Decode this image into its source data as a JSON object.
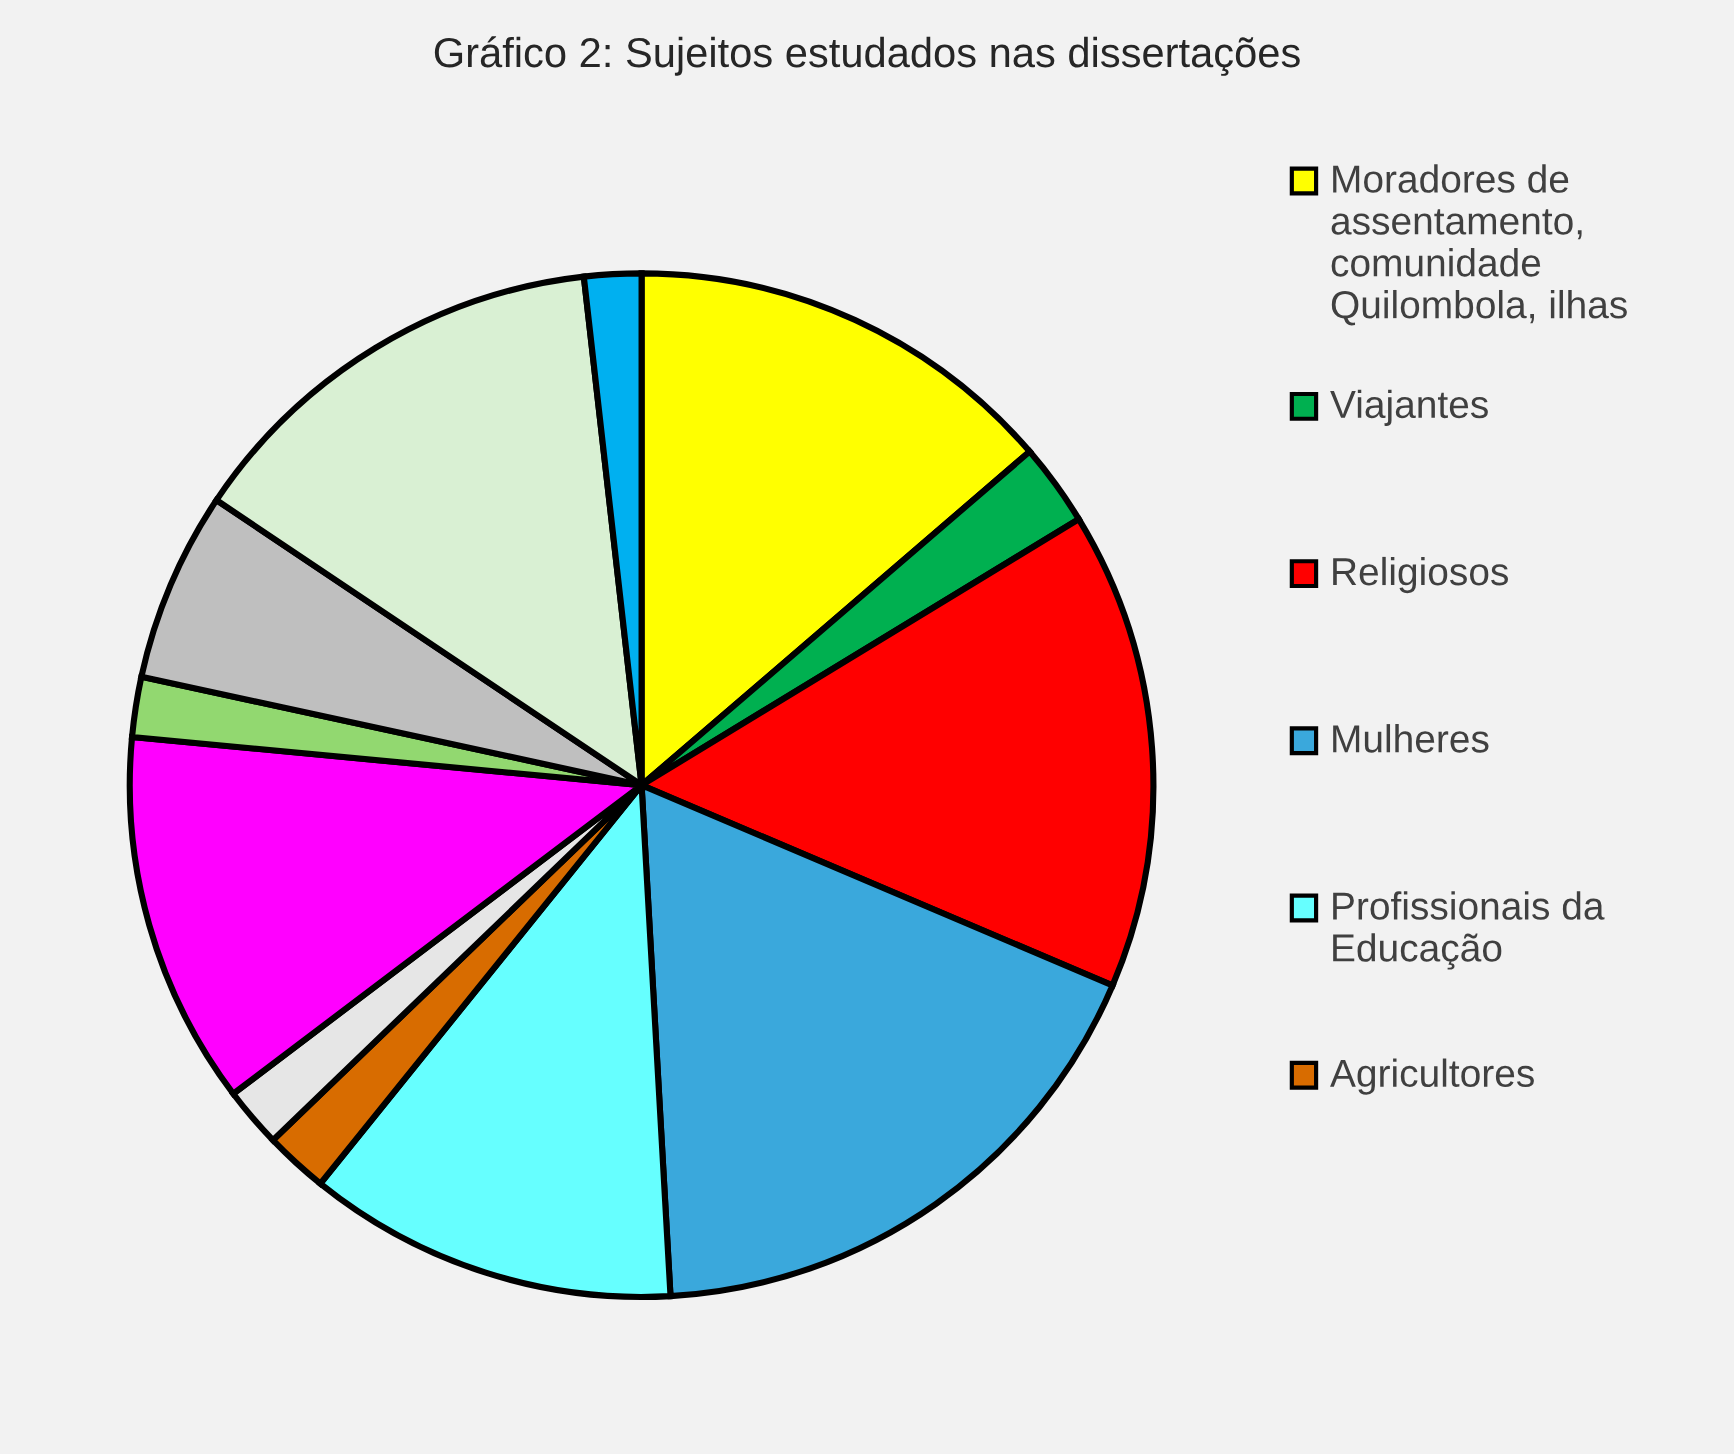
{
  "chart_data": {
    "type": "pie",
    "title": "Gráfico 2: Sujeitos estudados nas dissertações",
    "categories": [
      "Moradores de assentamento, comunidade Quilombola, ilhas",
      "Viajantes",
      "Religiosos",
      "Mulheres",
      "Profissionais da Educação",
      "Agricultores",
      null,
      null,
      null,
      null,
      null,
      null
    ],
    "values": [
      13.7,
      2.6,
      15.1,
      17.7,
      11.7,
      2.0,
      1.9,
      11.8,
      1.9,
      6.0,
      13.8,
      1.8
    ],
    "colors": [
      "#ffff00",
      "#00b050",
      "#ff0000",
      "#3aa8dc",
      "#66ffff",
      "#d86c00",
      "#e6e6e6",
      "#ff00ff",
      "#92d870",
      "#bfbfbf",
      "#d9f0d3",
      "#00b0f0"
    ],
    "legend": "right"
  }
}
